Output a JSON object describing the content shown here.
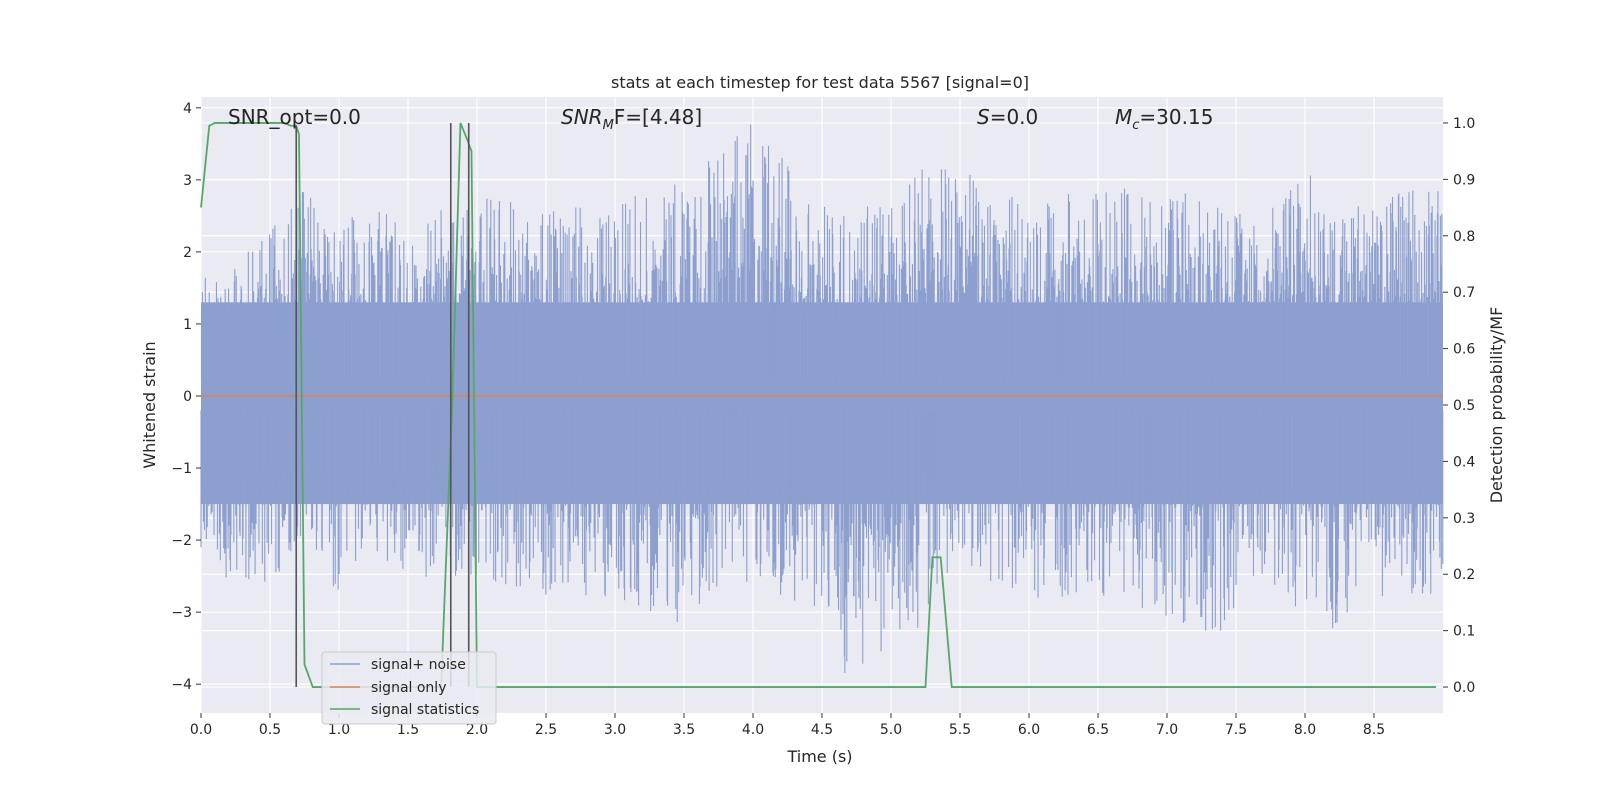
{
  "chart_data": {
    "type": "line",
    "title": "stats at each timestep for test data 5567 [signal=0]",
    "xlabel": "Time (s)",
    "ylabel": "Whitened strain",
    "y2label": "Detection probability/MF",
    "xlim": [
      0.0,
      9.0
    ],
    "ylim": [
      -4.4,
      4.15
    ],
    "y2lim": [
      -0.046,
      1.046
    ],
    "x_ticks": [
      "0.0",
      "0.5",
      "1.0",
      "1.5",
      "2.0",
      "2.5",
      "3.0",
      "3.5",
      "4.0",
      "4.5",
      "5.0",
      "5.5",
      "6.0",
      "6.5",
      "7.0",
      "7.5",
      "8.0",
      "8.5"
    ],
    "y_ticks": [
      "4",
      "3",
      "2",
      "1",
      "0",
      "−1",
      "−2",
      "−3",
      "−4"
    ],
    "y2_ticks": [
      "1.0",
      "0.9",
      "0.8",
      "0.7",
      "0.6",
      "0.5",
      "0.4",
      "0.3",
      "0.2",
      "0.1",
      "0.0"
    ],
    "grid": true,
    "legend_placement": "lower-left",
    "annotations": [
      {
        "name": "snr-opt",
        "text": "SNR_opt=0.0"
      },
      {
        "name": "snr-mf",
        "base": "SNR",
        "sub": "M",
        "rest": "F=[4.48]"
      },
      {
        "name": "s-value",
        "base": "S",
        "rest": "=0.0"
      },
      {
        "name": "chirp-mass",
        "base": "M",
        "sub": "c",
        "rest": "=30.15"
      }
    ],
    "series": [
      {
        "name": "signal+ noise",
        "color": "#8c9fcf",
        "axis": "left",
        "kind": "noise",
        "envelope": [
          [
            0.0,
            1.7,
            -2.6
          ],
          [
            0.5,
            2.3,
            -2.6
          ],
          [
            0.7,
            3.0,
            -2.3
          ],
          [
            1.0,
            2.3,
            -2.8
          ],
          [
            1.2,
            2.8,
            -2.1
          ],
          [
            1.5,
            2.3,
            -2.6
          ],
          [
            1.8,
            2.7,
            -2.5
          ],
          [
            2.0,
            2.8,
            -2.5
          ],
          [
            2.5,
            2.6,
            -2.8
          ],
          [
            3.0,
            2.8,
            -2.8
          ],
          [
            3.5,
            3.0,
            -3.2
          ],
          [
            4.0,
            3.8,
            -2.6
          ],
          [
            4.5,
            2.7,
            -3.0
          ],
          [
            4.6,
            2.5,
            -4.0
          ],
          [
            5.0,
            3.1,
            -3.7
          ],
          [
            5.5,
            3.2,
            -2.5
          ],
          [
            6.0,
            2.7,
            -2.8
          ],
          [
            6.5,
            2.9,
            -2.8
          ],
          [
            7.0,
            2.9,
            -3.2
          ],
          [
            7.4,
            2.7,
            -3.3
          ],
          [
            7.6,
            2.6,
            -2.5
          ],
          [
            8.0,
            3.2,
            -3.2
          ],
          [
            8.3,
            2.6,
            -3.3
          ],
          [
            8.6,
            2.9,
            -2.7
          ],
          [
            9.0,
            3.0,
            -2.8
          ]
        ]
      },
      {
        "name": "signal only",
        "color": "#dd8452",
        "axis": "left",
        "x": [
          0.0,
          9.0
        ],
        "y": [
          0.0,
          0.0
        ]
      },
      {
        "name": "signal statistics",
        "color": "#55a868",
        "axis": "right",
        "x": [
          0.0,
          0.06,
          0.1,
          0.2,
          0.3,
          0.4,
          0.5,
          0.6,
          0.65,
          0.69,
          0.71,
          0.75,
          0.81,
          0.9,
          1.0,
          1.5,
          1.74,
          1.82,
          1.88,
          1.93,
          1.96,
          2.0,
          2.5,
          3.0,
          3.5,
          4.0,
          4.5,
          5.0,
          5.25,
          5.3,
          5.36,
          5.44,
          5.5,
          6.0,
          7.0,
          8.0,
          8.95
        ],
        "y": [
          0.85,
          0.995,
          1.0,
          1.0,
          1.0,
          1.0,
          1.0,
          1.0,
          0.995,
          0.995,
          0.98,
          0.04,
          0.0,
          0.0,
          0.0,
          0.0,
          0.0,
          0.5,
          1.0,
          0.97,
          0.95,
          0.0,
          0.0,
          0.0,
          0.0,
          0.0,
          0.0,
          0.0,
          0.0,
          0.23,
          0.23,
          0.0,
          0.0,
          0.0,
          0.0,
          0.0,
          0.0
        ]
      }
    ],
    "vertical_markers": [
      {
        "x": 0.69,
        "y_top": 0.995,
        "y_bottom": 0.0
      },
      {
        "x": 1.81,
        "y_top": 1.0,
        "y_bottom": 0.0
      },
      {
        "x": 1.94,
        "y_top": 1.0,
        "y_bottom": 0.0
      }
    ],
    "marker_color": "#555555"
  }
}
